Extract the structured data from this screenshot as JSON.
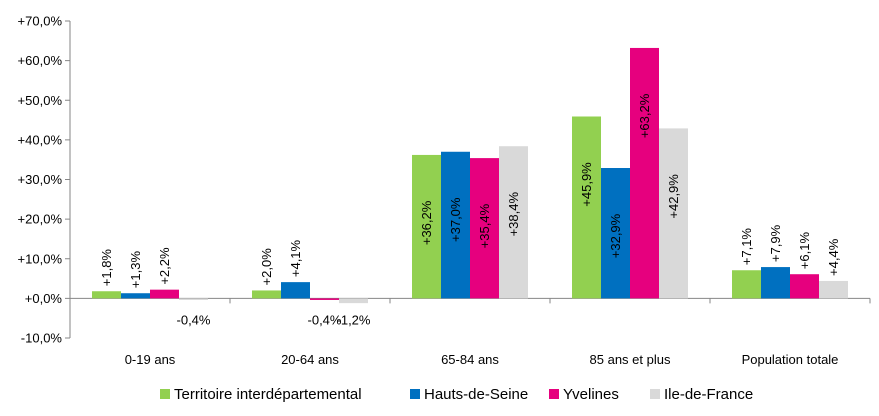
{
  "chart_data": {
    "type": "bar",
    "title": "",
    "xlabel": "",
    "ylabel": "",
    "ylim": [
      -10,
      70
    ],
    "ytick_step": 10,
    "ytick_labels": [
      "-10,0%",
      "+0,0%",
      "+10,0%",
      "+20,0%",
      "+30,0%",
      "+40,0%",
      "+50,0%",
      "+60,0%",
      "+70,0%"
    ],
    "grid": false,
    "legend_position": "bottom",
    "categories": [
      "0-19 ans",
      "20-64 ans",
      "65-84 ans",
      "85 ans et plus",
      "Population totale"
    ],
    "series": [
      {
        "name": "Territoire interdépartemental",
        "color": "#92d050",
        "values": [
          1.8,
          2.0,
          36.2,
          45.9,
          7.1
        ],
        "labels": [
          "+1,8%",
          "+2,0%",
          "+36,2%",
          "+45,9%",
          "+7,1%"
        ]
      },
      {
        "name": "Hauts-de-Seine",
        "color": "#0070c0",
        "values": [
          1.3,
          4.1,
          37.0,
          32.9,
          7.9
        ],
        "labels": [
          "+1,3%",
          "+4,1%",
          "+37,0%",
          "+32,9%",
          "+7,9%"
        ]
      },
      {
        "name": "Yvelines",
        "color": "#e6007e",
        "values": [
          2.2,
          -0.4,
          35.4,
          63.2,
          6.1
        ],
        "labels": [
          "+2,2%",
          "-0,4%",
          "+35,4%",
          "+63,2%",
          "+6,1%"
        ]
      },
      {
        "name": "Ile-de-France",
        "color": "#d9d9d9",
        "values": [
          -0.4,
          -1.2,
          38.4,
          42.9,
          4.4
        ],
        "labels": [
          "-0,4%",
          "-1,2%",
          "+38,4%",
          "+42,9%",
          "+4,4%"
        ]
      }
    ]
  }
}
